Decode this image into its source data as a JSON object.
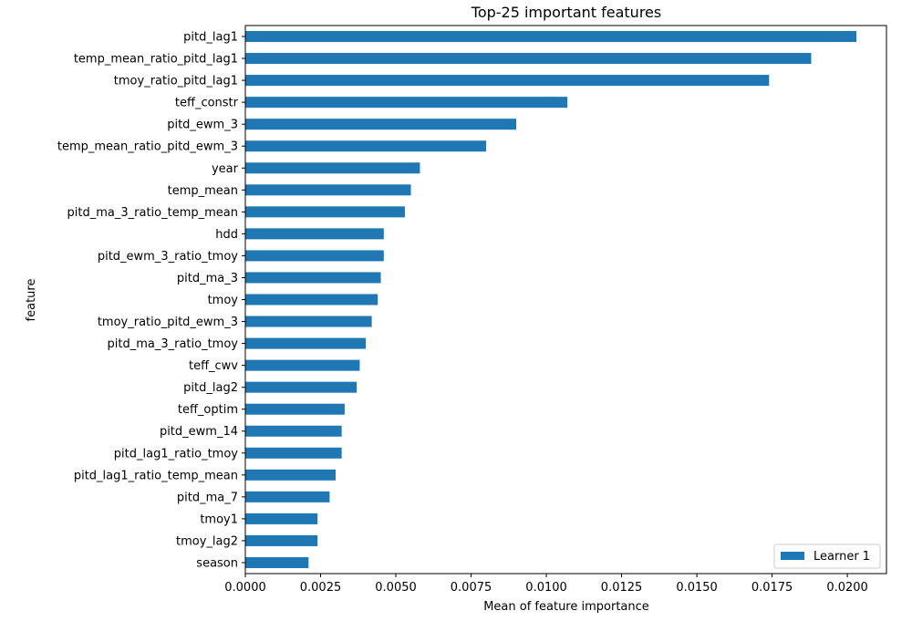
{
  "chart_data": {
    "type": "bar",
    "orientation": "horizontal",
    "title": "Top-25 important features",
    "xlabel": "Mean of feature importance",
    "ylabel": "feature",
    "xlim": [
      0,
      0.0213
    ],
    "xticks": [
      "0.0000",
      "0.0025",
      "0.0050",
      "0.0075",
      "0.0100",
      "0.0125",
      "0.0150",
      "0.0175",
      "0.0200"
    ],
    "grid": false,
    "legend_position": "lower-right",
    "bar_color": "#1f77b4",
    "categories": [
      "pitd_lag1",
      "temp_mean_ratio_pitd_lag1",
      "tmoy_ratio_pitd_lag1",
      "teff_constr",
      "pitd_ewm_3",
      "temp_mean_ratio_pitd_ewm_3",
      "year",
      "temp_mean",
      "pitd_ma_3_ratio_temp_mean",
      "hdd",
      "pitd_ewm_3_ratio_tmoy",
      "pitd_ma_3",
      "tmoy",
      "tmoy_ratio_pitd_ewm_3",
      "pitd_ma_3_ratio_tmoy",
      "teff_cwv",
      "pitd_lag2",
      "teff_optim",
      "pitd_ewm_14",
      "pitd_lag1_ratio_tmoy",
      "pitd_lag1_ratio_temp_mean",
      "pitd_ma_7",
      "tmoy1",
      "tmoy_lag2",
      "season"
    ],
    "series": [
      {
        "name": "Learner 1",
        "values": [
          0.0203,
          0.0188,
          0.0174,
          0.0107,
          0.009,
          0.008,
          0.0058,
          0.0055,
          0.0053,
          0.0046,
          0.0046,
          0.0045,
          0.0044,
          0.0042,
          0.004,
          0.0038,
          0.0037,
          0.0033,
          0.0032,
          0.0032,
          0.003,
          0.0028,
          0.0024,
          0.0024,
          0.0021
        ]
      }
    ]
  }
}
